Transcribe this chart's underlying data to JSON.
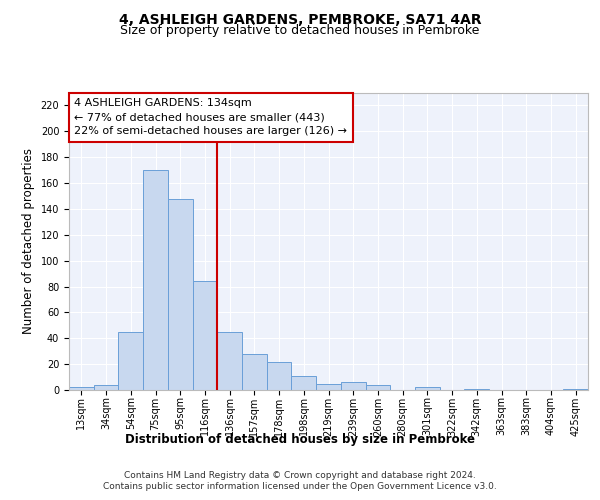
{
  "title": "4, ASHLEIGH GARDENS, PEMBROKE, SA71 4AR",
  "subtitle": "Size of property relative to detached houses in Pembroke",
  "xlabel": "Distribution of detached houses by size in Pembroke",
  "ylabel": "Number of detached properties",
  "categories": [
    "13sqm",
    "34sqm",
    "54sqm",
    "75sqm",
    "95sqm",
    "116sqm",
    "136sqm",
    "157sqm",
    "178sqm",
    "198sqm",
    "219sqm",
    "239sqm",
    "260sqm",
    "280sqm",
    "301sqm",
    "322sqm",
    "342sqm",
    "363sqm",
    "383sqm",
    "404sqm",
    "425sqm"
  ],
  "values": [
    2,
    4,
    45,
    170,
    148,
    84,
    45,
    28,
    22,
    11,
    5,
    6,
    4,
    0,
    2,
    0,
    1,
    0,
    0,
    0,
    1
  ],
  "bar_color": "#c8d8ef",
  "bar_edge_color": "#6a9fd8",
  "annotation_line1": "4 ASHLEIGH GARDENS: 134sqm",
  "annotation_line2": "← 77% of detached houses are smaller (443)",
  "annotation_line3": "22% of semi-detached houses are larger (126) →",
  "annotation_box_color": "#ffffff",
  "annotation_box_edge": "#cc0000",
  "vline_color": "#cc0000",
  "vline_x_index": 6,
  "ylim": [
    0,
    230
  ],
  "yticks": [
    0,
    20,
    40,
    60,
    80,
    100,
    120,
    140,
    160,
    180,
    200,
    220
  ],
  "footer_line1": "Contains HM Land Registry data © Crown copyright and database right 2024.",
  "footer_line2": "Contains public sector information licensed under the Open Government Licence v3.0.",
  "bg_color": "#eef2fb",
  "grid_color": "#ffffff",
  "title_fontsize": 10,
  "subtitle_fontsize": 9,
  "axis_label_fontsize": 8.5,
  "tick_fontsize": 7,
  "annotation_fontsize": 8,
  "footer_fontsize": 6.5
}
